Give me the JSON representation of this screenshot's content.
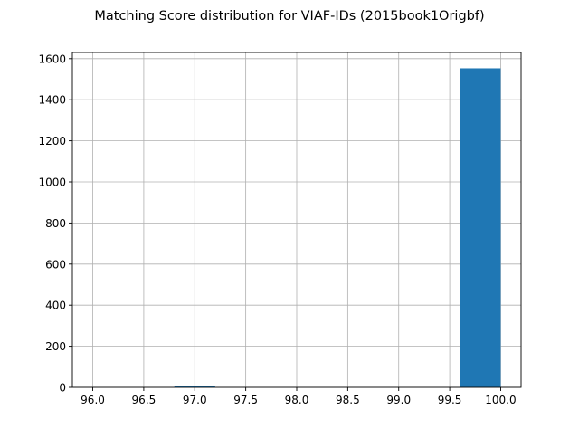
{
  "chart_data": {
    "type": "bar",
    "title": "Matching Score distribution for VIAF-IDs (2015book1Origbf)",
    "xlabel": "",
    "ylabel": "",
    "bins": [
      {
        "x0": 96.0,
        "x1": 96.4,
        "count": 0
      },
      {
        "x0": 96.4,
        "x1": 96.8,
        "count": 0
      },
      {
        "x0": 96.8,
        "x1": 97.2,
        "count": 8
      },
      {
        "x0": 97.2,
        "x1": 97.6,
        "count": 0
      },
      {
        "x0": 97.6,
        "x1": 98.0,
        "count": 0
      },
      {
        "x0": 98.0,
        "x1": 98.4,
        "count": 0
      },
      {
        "x0": 98.4,
        "x1": 98.8,
        "count": 0
      },
      {
        "x0": 98.8,
        "x1": 99.2,
        "count": 0
      },
      {
        "x0": 99.2,
        "x1": 99.6,
        "count": 0
      },
      {
        "x0": 99.6,
        "x1": 100.0,
        "count": 1553
      }
    ],
    "xlim": [
      95.8,
      100.2
    ],
    "ylim": [
      0,
      1630
    ],
    "xticks": [
      "96.0",
      "96.5",
      "97.0",
      "97.5",
      "98.0",
      "98.5",
      "99.0",
      "99.5",
      "100.0"
    ],
    "yticks": [
      "0",
      "200",
      "400",
      "600",
      "800",
      "1000",
      "1200",
      "1400",
      "1600"
    ],
    "grid": true,
    "colors": {
      "bar": "#1f77b4",
      "grid": "#b0b0b0",
      "axis": "#000000"
    }
  }
}
